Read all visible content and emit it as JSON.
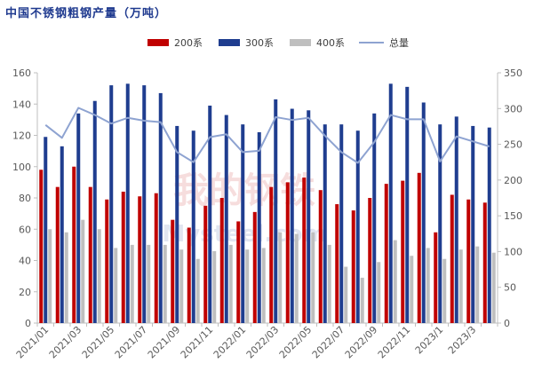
{
  "title": "中国不锈钢粗钢产量（万吨）",
  "watermark": {
    "cn": "我的钢铁",
    "en": "Mysteel.com"
  },
  "colors": {
    "s200": "#c00000",
    "s300": "#1f3d8f",
    "s400": "#bfbfbf",
    "total": "#8ea3d1",
    "axis": "#bfbfbf",
    "title": "#1f3a8f"
  },
  "chart_data": {
    "type": "bar",
    "title": "中国不锈钢粗钢产量（万吨）",
    "categories": [
      "2021/01",
      "2021/02",
      "2021/03",
      "2021/04",
      "2021/05",
      "2021/06",
      "2021/07",
      "2021/08",
      "2021/09",
      "2021/10",
      "2021/11",
      "2021/12",
      "2022/01",
      "2022/02",
      "2022/03",
      "2022/04",
      "2022/05",
      "2022/06",
      "2022/07",
      "2022/08",
      "2022/09",
      "2022/10",
      "2022/11",
      "2022/12",
      "2023/1",
      "2023/2",
      "2023/3",
      "2023/4"
    ],
    "x_tick_labels": [
      "2021/01",
      "2021/03",
      "2021/05",
      "2021/07",
      "2021/09",
      "2021/11",
      "2022/01",
      "2022/03",
      "2022/05",
      "2022/07",
      "2022/09",
      "2022/11",
      "2023/1",
      "2023/3"
    ],
    "series": [
      {
        "name": "200系",
        "axis": "left",
        "kind": "bar",
        "values": [
          98,
          87,
          100,
          87,
          79,
          84,
          81,
          83,
          66,
          61,
          75,
          80,
          65,
          71,
          87,
          90,
          93,
          85,
          76,
          72,
          80,
          89,
          91,
          96,
          58,
          82,
          79,
          77
        ]
      },
      {
        "name": "300系",
        "axis": "left",
        "kind": "bar",
        "values": [
          119,
          113,
          134,
          142,
          152,
          153,
          152,
          147,
          126,
          123,
          139,
          133,
          127,
          122,
          143,
          137,
          136,
          127,
          127,
          123,
          134,
          153,
          151,
          141,
          127,
          132,
          126,
          125
        ]
      },
      {
        "name": "400系",
        "axis": "left",
        "kind": "bar",
        "values": [
          60,
          58,
          66,
          60,
          48,
          50,
          50,
          50,
          47,
          41,
          46,
          50,
          47,
          48,
          58,
          57,
          58,
          50,
          36,
          29,
          39,
          53,
          43,
          48,
          41,
          47,
          49,
          45
        ]
      },
      {
        "name": "总量",
        "axis": "right",
        "kind": "line",
        "values": [
          277,
          259,
          301,
          291,
          279,
          287,
          283,
          281,
          239,
          225,
          260,
          264,
          239,
          241,
          288,
          284,
          287,
          262,
          239,
          224,
          253,
          291,
          285,
          285,
          226,
          261,
          254,
          247
        ]
      }
    ],
    "y_left": {
      "min": 0,
      "max": 160,
      "ticks": [
        0,
        20,
        40,
        60,
        80,
        100,
        120,
        140,
        160
      ]
    },
    "y_right": {
      "min": 0,
      "max": 350,
      "ticks": [
        0,
        50,
        100,
        150,
        200,
        250,
        300,
        350
      ]
    },
    "legend_position": "top",
    "grid": false
  }
}
